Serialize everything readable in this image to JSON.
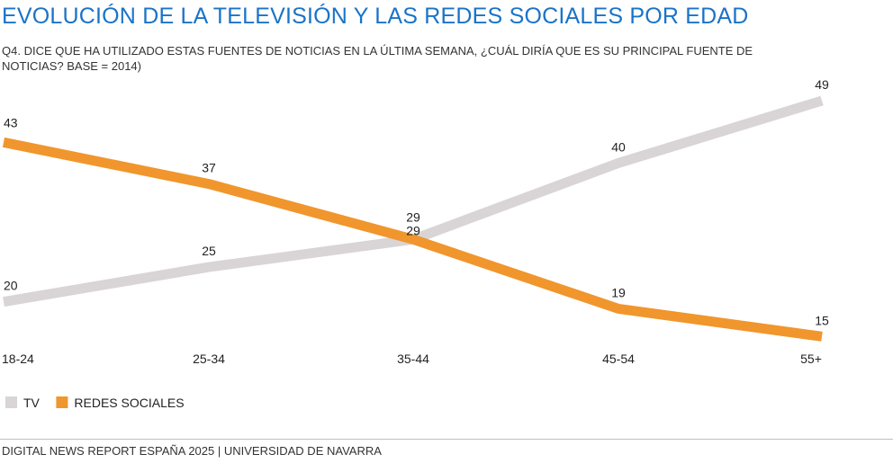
{
  "title": "EVOLUCIÓN DE LA TELEVISIÓN Y LAS REDES SOCIALES POR EDAD",
  "subtitle": "Q4. DICE QUE HA UTILIZADO ESTAS FUENTES DE NOTICIAS EN LA ÚLTIMA SEMANA, ¿CUÁL DIRÍA QUE ES SU PRINCIPAL FUENTE DE NOTICIAS? BASE = 2014)",
  "footer": "DIGITAL NEWS REPORT ESPAÑA 2025 | UNIVERSIDAD DE NAVARRA",
  "chart_data": {
    "type": "line",
    "categories": [
      "18-24",
      "25-34",
      "35-44",
      "45-54",
      "55+"
    ],
    "series": [
      {
        "name": "TV",
        "values": [
          20,
          25,
          29,
          40,
          49
        ],
        "color": "#d9d4d6"
      },
      {
        "name": "REDES SOCIALES",
        "values": [
          43,
          37,
          29,
          19,
          15
        ],
        "color": "#f0962d"
      }
    ],
    "legend_position": "bottom-left",
    "grid": false,
    "y_axis": "hidden"
  }
}
